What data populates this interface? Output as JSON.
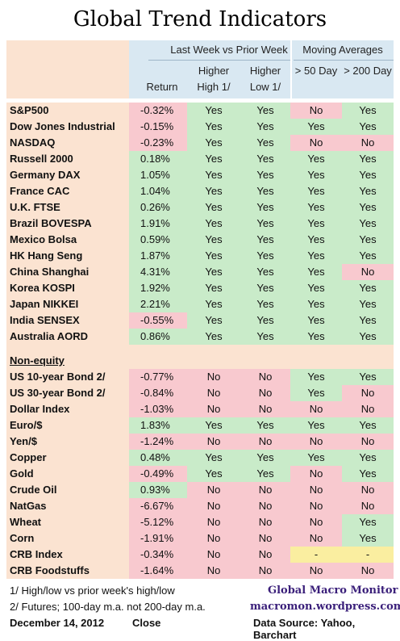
{
  "title": "Global Trend Indicators",
  "headers": {
    "group1": "Last Week vs Prior Week",
    "group2": "Moving Averages",
    "return": "Return",
    "higher_high_1": "Higher",
    "higher_high_2": "High 1/",
    "higher_low_1": "Higher",
    "higher_low_2": "Low 1/",
    "ma50": "> 50 Day",
    "ma200": "> 200 Day"
  },
  "equities": [
    {
      "name": "S&P500",
      "return": "-0.32%",
      "hh": "Yes",
      "hl": "Yes",
      "ma50": "No",
      "ma200": "Yes"
    },
    {
      "name": "Dow Jones Industrial",
      "return": "-0.15%",
      "hh": "Yes",
      "hl": "Yes",
      "ma50": "Yes",
      "ma200": "Yes"
    },
    {
      "name": "NASDAQ",
      "return": "-0.23%",
      "hh": "Yes",
      "hl": "Yes",
      "ma50": "No",
      "ma200": "No"
    },
    {
      "name": "Russell 2000",
      "return": "0.18%",
      "hh": "Yes",
      "hl": "Yes",
      "ma50": "Yes",
      "ma200": "Yes"
    },
    {
      "name": "Germany DAX",
      "return": "1.05%",
      "hh": "Yes",
      "hl": "Yes",
      "ma50": "Yes",
      "ma200": "Yes"
    },
    {
      "name": "France CAC",
      "return": "1.04%",
      "hh": "Yes",
      "hl": "Yes",
      "ma50": "Yes",
      "ma200": "Yes"
    },
    {
      "name": "U.K. FTSE",
      "return": "0.26%",
      "hh": "Yes",
      "hl": "Yes",
      "ma50": "Yes",
      "ma200": "Yes"
    },
    {
      "name": "Brazil BOVESPA",
      "return": "1.91%",
      "hh": "Yes",
      "hl": "Yes",
      "ma50": "Yes",
      "ma200": "Yes"
    },
    {
      "name": "Mexico Bolsa",
      "return": "0.59%",
      "hh": "Yes",
      "hl": "Yes",
      "ma50": "Yes",
      "ma200": "Yes"
    },
    {
      "name": "HK  Hang Seng",
      "return": "1.87%",
      "hh": "Yes",
      "hl": "Yes",
      "ma50": "Yes",
      "ma200": "Yes"
    },
    {
      "name": "China Shanghai",
      "return": "4.31%",
      "hh": "Yes",
      "hl": "Yes",
      "ma50": "Yes",
      "ma200": "No"
    },
    {
      "name": "Korea KOSPI",
      "return": "1.92%",
      "hh": "Yes",
      "hl": "Yes",
      "ma50": "Yes",
      "ma200": "Yes"
    },
    {
      "name": "Japan NIKKEI",
      "return": "2.21%",
      "hh": "Yes",
      "hl": "Yes",
      "ma50": "Yes",
      "ma200": "Yes"
    },
    {
      "name": "India SENSEX",
      "return": "-0.55%",
      "hh": "Yes",
      "hl": "Yes",
      "ma50": "Yes",
      "ma200": "Yes"
    },
    {
      "name": "Australia AORD",
      "return": "0.86%",
      "hh": "Yes",
      "hl": "Yes",
      "ma50": "Yes",
      "ma200": "Yes"
    }
  ],
  "non_equity_label": "Non-equity",
  "non_equity": [
    {
      "name": "US 10-year Bond 2/",
      "return": "-0.77%",
      "hh": "No",
      "hl": "No",
      "ma50": "Yes",
      "ma200": "Yes"
    },
    {
      "name": "US 30-year Bond 2/",
      "return": "-0.84%",
      "hh": "No",
      "hl": "No",
      "ma50": "Yes",
      "ma200": "No"
    },
    {
      "name": "Dollar Index",
      "return": "-1.03%",
      "hh": "No",
      "hl": "No",
      "ma50": "No",
      "ma200": "No"
    },
    {
      "name": "Euro/$",
      "return": "1.83%",
      "hh": "Yes",
      "hl": "Yes",
      "ma50": "Yes",
      "ma200": "Yes"
    },
    {
      "name": "Yen/$",
      "return": "-1.24%",
      "hh": "No",
      "hl": "No",
      "ma50": "No",
      "ma200": "No"
    },
    {
      "name": "Copper",
      "return": "0.48%",
      "hh": "Yes",
      "hl": "Yes",
      "ma50": "Yes",
      "ma200": "Yes"
    },
    {
      "name": "Gold",
      "return": "-0.49%",
      "hh": "Yes",
      "hl": "Yes",
      "ma50": "No",
      "ma200": "Yes"
    },
    {
      "name": "Crude Oil",
      "return": "0.93%",
      "hh": "No",
      "hl": "No",
      "ma50": "No",
      "ma200": "No"
    },
    {
      "name": "NatGas",
      "return": "-6.67%",
      "hh": "No",
      "hl": "No",
      "ma50": "No",
      "ma200": "No"
    },
    {
      "name": "Wheat",
      "return": "-5.12%",
      "hh": "No",
      "hl": "No",
      "ma50": "No",
      "ma200": "Yes"
    },
    {
      "name": "Corn",
      "return": "-1.91%",
      "hh": "No",
      "hl": "No",
      "ma50": "No",
      "ma200": "Yes"
    },
    {
      "name": "CRB Index",
      "return": "-0.34%",
      "hh": "No",
      "hl": "No",
      "ma50": "-",
      "ma200": "-"
    },
    {
      "name": "CRB Foodstuffs",
      "return": "-1.64%",
      "hh": "No",
      "hl": "No",
      "ma50": "No",
      "ma200": "No"
    }
  ],
  "footnotes": {
    "note1": "1/  High/low vs prior week's high/low",
    "note2": "2/  Futures;  100-day m.a. not 200-day m.a.",
    "date": "December 14, 2012",
    "close": "Close",
    "brand": "Global Macro Monitor",
    "site": "macromon.wordpress.com",
    "source": "Data Source: Yahoo, Barchart"
  },
  "colors": {
    "positive": "#c9ebc9",
    "negative": "#f8c9cf",
    "neutral": "#faeea0",
    "label_bg": "#fbe3d1",
    "header_bg": "#d9e8f2",
    "brand": "#3a1f7a"
  }
}
